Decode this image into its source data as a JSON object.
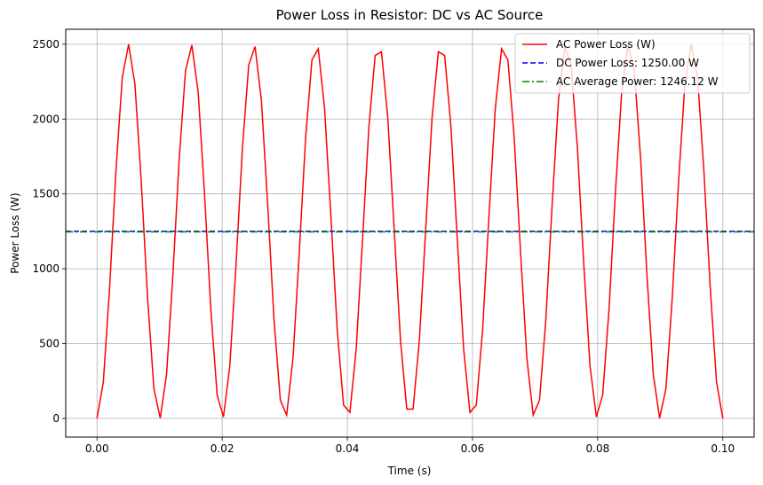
{
  "chart_data": {
    "type": "line",
    "title": "Power Loss in Resistor: DC vs AC Source",
    "xlabel": "Time (s)",
    "ylabel": "Power Loss (W)",
    "xlim": [
      -0.005,
      0.105
    ],
    "ylim": [
      -125,
      2600
    ],
    "xticks": [
      0.0,
      0.02,
      0.04,
      0.06,
      0.08,
      0.1
    ],
    "xtick_labels": [
      "0.00",
      "0.02",
      "0.04",
      "0.06",
      "0.08",
      "0.10"
    ],
    "yticks": [
      0,
      500,
      1000,
      1500,
      2000,
      2500
    ],
    "ytick_labels": [
      "0",
      "500",
      "1000",
      "1500",
      "2000",
      "2500"
    ],
    "grid": true,
    "legend_position": "top-right",
    "series": [
      {
        "name": "AC Power Loss (W)",
        "color": "#ff0000",
        "style": "solid",
        "formula": "2500*sin^2(2*pi*50*t)",
        "peak": 2500,
        "frequency_hz": 50,
        "t_start": 0.0,
        "t_end": 0.1,
        "num_points": 100
      },
      {
        "name": "DC Power Loss: 1250.00 W",
        "color": "#0000ff",
        "style": "dashed",
        "value": 1250.0
      },
      {
        "name": "AC Average Power: 1246.12 W",
        "color": "#008000",
        "style": "dashdot",
        "value": 1246.12
      }
    ]
  }
}
